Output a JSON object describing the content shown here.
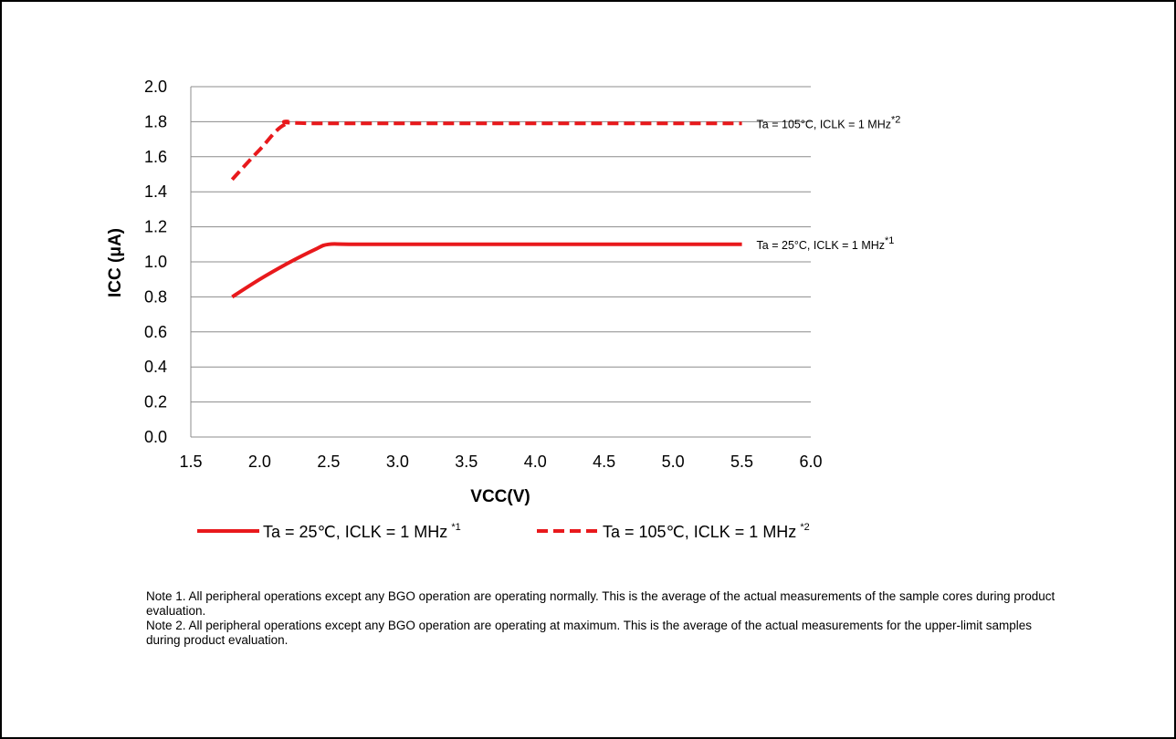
{
  "chart_data": {
    "type": "line",
    "xlabel": "VCC(V)",
    "ylabel": "ICC (μA)",
    "xlim": [
      1.5,
      6.0
    ],
    "ylim": [
      0.0,
      2.0
    ],
    "x_ticks": [
      "1.5",
      "2.0",
      "2.5",
      "3.0",
      "3.5",
      "4.0",
      "4.5",
      "5.0",
      "5.5",
      "6.0"
    ],
    "y_ticks": [
      "2.0",
      "1.8",
      "1.6",
      "1.4",
      "1.2",
      "1.0",
      "0.8",
      "0.6",
      "0.4",
      "0.2",
      "0.0"
    ],
    "grid": "horizontal",
    "legend_position": "bottom",
    "series": [
      {
        "name": "Ta = 25℃, ICLK = 1 MHz",
        "note_mark": "*1",
        "end_label": "Ta = 25°C, ICLK = 1 MHz",
        "style": "solid",
        "color": "#e8191c",
        "points": [
          [
            1.8,
            0.8
          ],
          [
            2.0,
            0.9
          ],
          [
            2.2,
            0.99
          ],
          [
            2.4,
            1.07
          ],
          [
            2.5,
            1.1
          ],
          [
            2.7,
            1.1
          ],
          [
            3.5,
            1.1
          ],
          [
            5.5,
            1.1
          ]
        ]
      },
      {
        "name": "Ta = 105℃, ICLK = 1 MHz",
        "note_mark": "*2",
        "end_label": "Ta = 105°C, ICLK = 1 MHz",
        "style": "dashed",
        "color": "#e8191c",
        "points": [
          [
            1.8,
            1.47
          ],
          [
            2.0,
            1.64
          ],
          [
            2.2,
            1.79
          ],
          [
            2.5,
            1.79
          ],
          [
            5.5,
            1.79
          ]
        ]
      }
    ]
  },
  "notes": [
    "Note 1. All peripheral operations except any BGO operation are operating normally. This is the average of the actual measurements of the sample cores during product evaluation.",
    "Note 2. All peripheral operations except any BGO operation are operating at maximum. This is the average of the actual measurements for the upper-limit samples during product evaluation."
  ]
}
